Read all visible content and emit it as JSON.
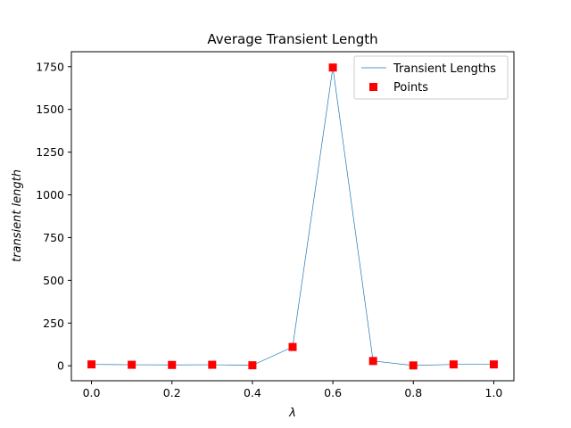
{
  "chart_data": {
    "type": "line",
    "title": "Average Transient Length",
    "xlabel": "λ",
    "ylabel": "transient length",
    "xlim": [
      -0.05,
      1.05
    ],
    "ylim": [
      -87.5,
      1837.5
    ],
    "x_ticks": [
      0.0,
      0.2,
      0.4,
      0.6,
      0.8,
      1.0
    ],
    "x_tick_labels": [
      "0.0",
      "0.2",
      "0.4",
      "0.6",
      "0.8",
      "1.0"
    ],
    "y_ticks": [
      0,
      250,
      500,
      750,
      1000,
      1250,
      1500,
      1750
    ],
    "y_tick_labels": [
      "0",
      "250",
      "500",
      "750",
      "1000",
      "1250",
      "1500",
      "1750"
    ],
    "grid": false,
    "legend_position": "top-right",
    "series": [
      {
        "name": "Transient Lengths",
        "style": "line",
        "color": "#1f77b4",
        "x": [
          0.0,
          0.1,
          0.2,
          0.3,
          0.4,
          0.5,
          0.6,
          0.7,
          0.8,
          0.9,
          1.0
        ],
        "y": [
          8,
          6,
          5,
          6,
          3,
          110,
          1745,
          28,
          2,
          8,
          8
        ]
      },
      {
        "name": "Points",
        "style": "marker-square",
        "color": "#ff0000",
        "x": [
          0.0,
          0.1,
          0.2,
          0.3,
          0.4,
          0.5,
          0.6,
          0.7,
          0.8,
          0.9,
          1.0
        ],
        "y": [
          8,
          6,
          5,
          6,
          3,
          110,
          1745,
          28,
          2,
          8,
          8
        ]
      }
    ]
  }
}
